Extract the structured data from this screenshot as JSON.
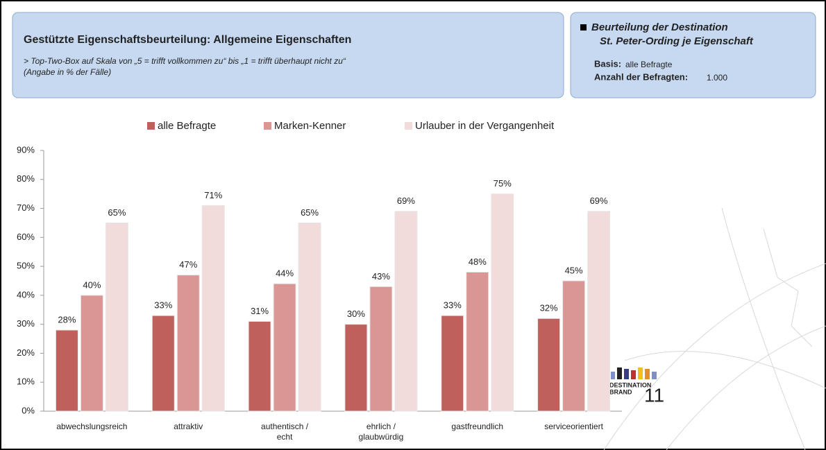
{
  "header": {
    "title": "Gestützte Eigenschaftsbeurteilung: Allgemeine Eigenschaften",
    "subtitle_1": "> Top-Two-Box auf Skala von „5 = trifft vollkommen zu“ bis „1 = trifft überhaupt nicht zu“",
    "subtitle_2": "(Angabe in % der Fälle)"
  },
  "info": {
    "title_1": "Beurteilung der Destination",
    "title_2": "St. Peter-Ording je Eigenschaft",
    "basis_label": "Basis:",
    "basis_value": "alle Befragte",
    "count_label": "Anzahl der Befragten:",
    "count_value": "1.000"
  },
  "logo": {
    "line_1": "DESTINATION",
    "line_2": "BRAND",
    "number": "11"
  },
  "chart_data": {
    "type": "bar",
    "categories": [
      "abwechslungsreich",
      "attraktiv",
      "authentisch /\necht",
      "ehrlich /\nglaubwürdig",
      "gastfreundlich",
      "serviceorientiert"
    ],
    "series": [
      {
        "name": "alle Befragte",
        "color": "#c0605c",
        "values": [
          28,
          33,
          31,
          30,
          33,
          32
        ],
        "value_labels": [
          "28%",
          "33%",
          "31%",
          "30%",
          "33%",
          "32%"
        ]
      },
      {
        "name": "Marken-Kenner",
        "color": "#d99694",
        "values": [
          40,
          47,
          44,
          43,
          48,
          45
        ],
        "value_labels": [
          "40%",
          "47%",
          "44%",
          "43%",
          "48%",
          "45%"
        ]
      },
      {
        "name": "Urlauber in der Vergangenheit",
        "color": "#f2dcdb",
        "values": [
          65,
          71,
          65,
          69,
          75,
          69
        ],
        "value_labels": [
          "65%",
          "71%",
          "65%",
          "69%",
          "75%",
          "69%"
        ]
      }
    ],
    "ylim": [
      0,
      90
    ],
    "yticks": [
      {
        "value": 0,
        "label": "0%"
      },
      {
        "value": 10,
        "label": "10%"
      },
      {
        "value": 20,
        "label": "20%"
      },
      {
        "value": 30,
        "label": "30%"
      },
      {
        "value": 40,
        "label": "40%"
      },
      {
        "value": 50,
        "label": "50%"
      },
      {
        "value": 60,
        "label": "60%"
      },
      {
        "value": 70,
        "label": "70%"
      },
      {
        "value": 80,
        "label": "80%"
      },
      {
        "value": 90,
        "label": "90%"
      }
    ],
    "legend": "top"
  }
}
